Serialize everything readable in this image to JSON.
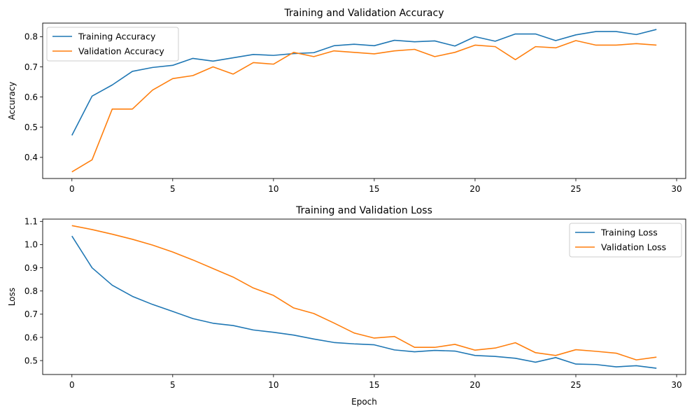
{
  "chart_data": [
    {
      "type": "line",
      "title": "Training and Validation Accuracy",
      "xlabel": "",
      "ylabel": "Accuracy",
      "xlim": [
        -1.45,
        30.45
      ],
      "ylim": [
        0.33,
        0.845
      ],
      "xticks": [
        0,
        5,
        10,
        15,
        20,
        25,
        30
      ],
      "yticks": [
        0.4,
        0.5,
        0.6,
        0.7,
        0.8
      ],
      "ytick_format": 1,
      "grid": false,
      "legend": "top-left",
      "x": [
        0,
        1,
        2,
        3,
        4,
        5,
        6,
        7,
        8,
        9,
        10,
        11,
        12,
        13,
        14,
        15,
        16,
        17,
        18,
        19,
        20,
        21,
        22,
        23,
        24,
        25,
        26,
        27,
        28,
        29
      ],
      "series": [
        {
          "name": "Training Accuracy",
          "color": "#1f77b4",
          "values": [
            0.473,
            0.603,
            0.64,
            0.685,
            0.698,
            0.705,
            0.728,
            0.719,
            0.73,
            0.741,
            0.738,
            0.744,
            0.747,
            0.77,
            0.775,
            0.77,
            0.788,
            0.783,
            0.786,
            0.769,
            0.8,
            0.785,
            0.809,
            0.809,
            0.787,
            0.806,
            0.817,
            0.817,
            0.807,
            0.824
          ]
        },
        {
          "name": "Validation Accuracy",
          "color": "#ff7f0e",
          "values": [
            0.352,
            0.392,
            0.56,
            0.56,
            0.623,
            0.661,
            0.671,
            0.7,
            0.676,
            0.714,
            0.709,
            0.748,
            0.734,
            0.753,
            0.748,
            0.743,
            0.753,
            0.758,
            0.734,
            0.748,
            0.772,
            0.767,
            0.724,
            0.767,
            0.763,
            0.787,
            0.772,
            0.772,
            0.777,
            0.772
          ]
        }
      ]
    },
    {
      "type": "line",
      "title": "Training and Validation Loss",
      "xlabel": "Epoch",
      "ylabel": "Loss",
      "xlim": [
        -1.45,
        30.45
      ],
      "ylim": [
        0.44,
        1.11
      ],
      "xticks": [
        0,
        5,
        10,
        15,
        20,
        25,
        30
      ],
      "yticks": [
        0.5,
        0.6,
        0.7,
        0.8,
        0.9,
        1.0,
        1.1
      ],
      "ytick_format": 1,
      "grid": false,
      "legend": "top-right",
      "x": [
        0,
        1,
        2,
        3,
        4,
        5,
        6,
        7,
        8,
        9,
        10,
        11,
        12,
        13,
        14,
        15,
        16,
        17,
        18,
        19,
        20,
        21,
        22,
        23,
        24,
        25,
        26,
        27,
        28,
        29
      ],
      "series": [
        {
          "name": "Training Loss",
          "color": "#1f77b4",
          "values": [
            1.037,
            0.9,
            0.825,
            0.777,
            0.742,
            0.712,
            0.681,
            0.661,
            0.651,
            0.632,
            0.622,
            0.61,
            0.593,
            0.578,
            0.572,
            0.568,
            0.546,
            0.538,
            0.544,
            0.541,
            0.522,
            0.518,
            0.51,
            0.493,
            0.513,
            0.485,
            0.483,
            0.473,
            0.478,
            0.467
          ]
        },
        {
          "name": "Validation Loss",
          "color": "#ff7f0e",
          "values": [
            1.082,
            1.065,
            1.045,
            1.023,
            0.998,
            0.968,
            0.934,
            0.897,
            0.86,
            0.813,
            0.781,
            0.727,
            0.703,
            0.662,
            0.619,
            0.597,
            0.604,
            0.557,
            0.557,
            0.57,
            0.545,
            0.554,
            0.577,
            0.534,
            0.522,
            0.547,
            0.54,
            0.532,
            0.503,
            0.515
          ]
        }
      ]
    }
  ]
}
